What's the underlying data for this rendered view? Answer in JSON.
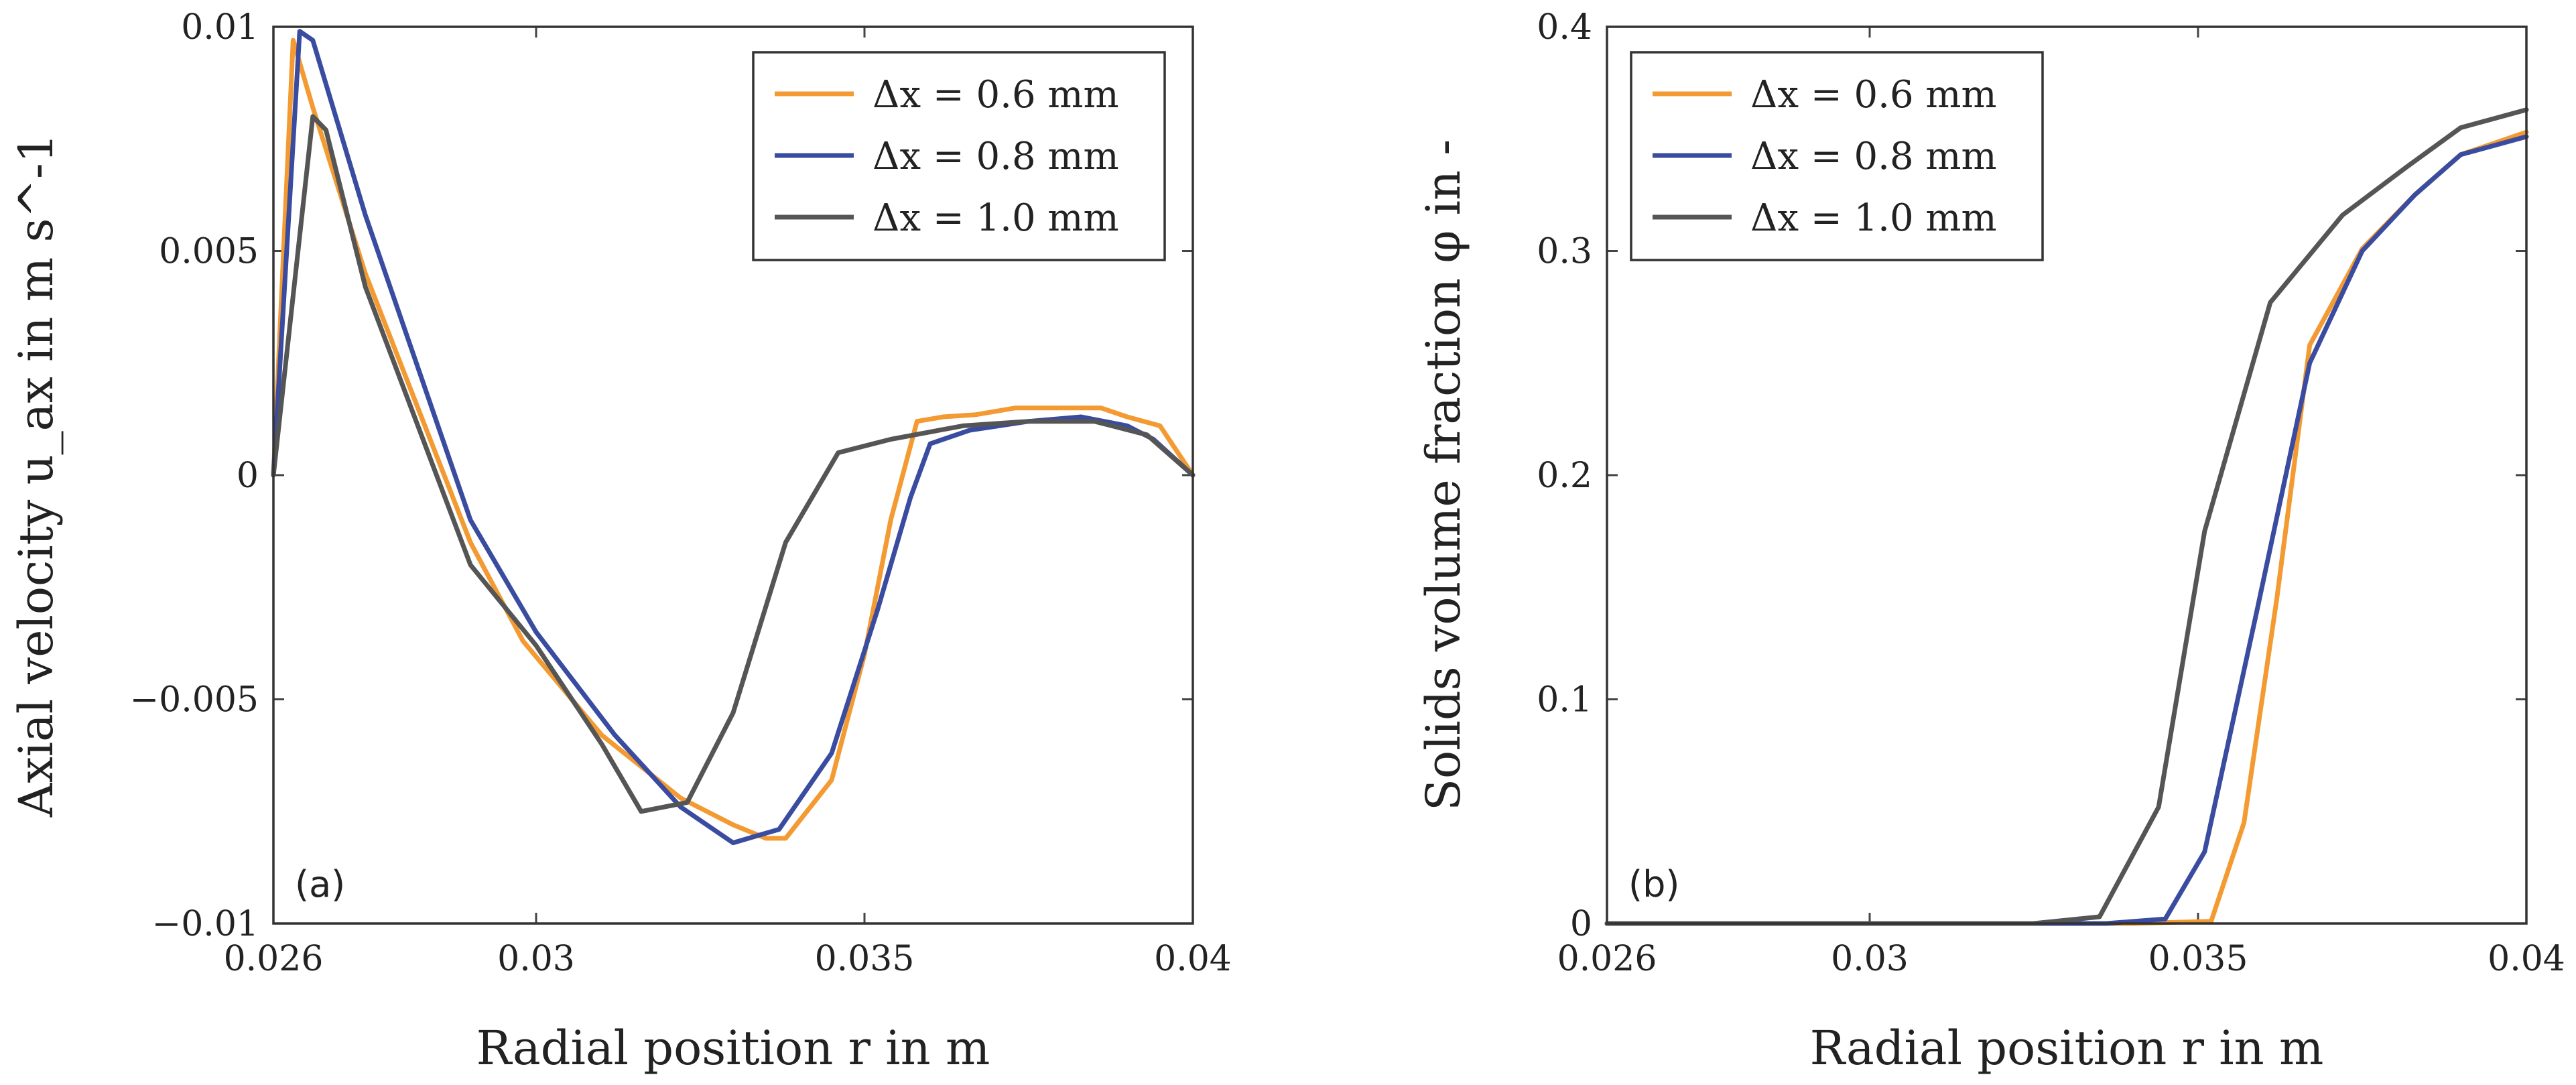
{
  "chart_data": [
    {
      "type": "line",
      "panel_label": "(a)",
      "xlabel": "Radial position r in m",
      "ylabel": "Axial velocity u_ax in m s^-1",
      "xlim": [
        0.026,
        0.04
      ],
      "ylim": [
        -0.01,
        0.01
      ],
      "xticks": [
        0.026,
        0.03,
        0.035,
        0.04
      ],
      "xtick_labels": [
        "0.026",
        "0.03",
        "0.035",
        "0.04"
      ],
      "yticks": [
        -0.01,
        -0.005,
        0,
        0.005,
        0.01
      ],
      "ytick_labels": [
        "−0.01",
        "−0.005",
        "0",
        "0.005",
        "0.01"
      ],
      "grid": false,
      "legend_position": "top-right",
      "series": [
        {
          "name": "Δx = 0.6 mm",
          "color": "#f39a32",
          "points": [
            [
              0.026,
              0.0
            ],
            [
              0.0263,
              0.0097
            ],
            [
              0.0266,
              0.0082
            ],
            [
              0.0274,
              0.0045
            ],
            [
              0.029,
              -0.0015
            ],
            [
              0.0298,
              -0.0037
            ],
            [
              0.031,
              -0.0058
            ],
            [
              0.0322,
              -0.0072
            ],
            [
              0.033,
              -0.0078
            ],
            [
              0.0335,
              -0.0081
            ],
            [
              0.0338,
              -0.0081
            ],
            [
              0.0345,
              -0.0068
            ],
            [
              0.035,
              -0.004
            ],
            [
              0.0354,
              -0.001
            ],
            [
              0.0358,
              0.0012
            ],
            [
              0.0362,
              0.0013
            ],
            [
              0.0367,
              0.00135
            ],
            [
              0.0373,
              0.0015
            ],
            [
              0.038,
              0.0015
            ],
            [
              0.0386,
              0.0015
            ],
            [
              0.039,
              0.0013
            ],
            [
              0.0395,
              0.0011
            ],
            [
              0.04,
              0.0
            ]
          ]
        },
        {
          "name": "Δx = 0.8 mm",
          "color": "#3a4ca0",
          "points": [
            [
              0.026,
              0.0
            ],
            [
              0.0264,
              0.0099
            ],
            [
              0.0266,
              0.0097
            ],
            [
              0.0274,
              0.0058
            ],
            [
              0.029,
              -0.001
            ],
            [
              0.03,
              -0.0035
            ],
            [
              0.0312,
              -0.0058
            ],
            [
              0.0322,
              -0.0074
            ],
            [
              0.033,
              -0.0082
            ],
            [
              0.0337,
              -0.0079
            ],
            [
              0.0345,
              -0.0062
            ],
            [
              0.0352,
              -0.003
            ],
            [
              0.0357,
              -0.0005
            ],
            [
              0.036,
              0.0007
            ],
            [
              0.0366,
              0.001
            ],
            [
              0.0375,
              0.0012
            ],
            [
              0.0383,
              0.0013
            ],
            [
              0.039,
              0.0011
            ],
            [
              0.0394,
              0.0008
            ],
            [
              0.04,
              0.0
            ]
          ]
        },
        {
          "name": "Δx = 1.0 mm",
          "color": "#555555",
          "points": [
            [
              0.026,
              0.0
            ],
            [
              0.0266,
              0.008
            ],
            [
              0.0268,
              0.0077
            ],
            [
              0.0274,
              0.0042
            ],
            [
              0.029,
              -0.002
            ],
            [
              0.03,
              -0.0038
            ],
            [
              0.031,
              -0.006
            ],
            [
              0.0316,
              -0.0075
            ],
            [
              0.0323,
              -0.0073
            ],
            [
              0.033,
              -0.0053
            ],
            [
              0.0338,
              -0.0015
            ],
            [
              0.0346,
              0.0005
            ],
            [
              0.0354,
              0.0008
            ],
            [
              0.0365,
              0.0011
            ],
            [
              0.0375,
              0.0012
            ],
            [
              0.0385,
              0.0012
            ],
            [
              0.0393,
              0.0009
            ],
            [
              0.04,
              0.0
            ]
          ]
        }
      ]
    },
    {
      "type": "line",
      "panel_label": "(b)",
      "xlabel": "Radial position r in m",
      "ylabel": "Solids volume fraction φ in -",
      "xlim": [
        0.026,
        0.04
      ],
      "ylim": [
        0,
        0.4
      ],
      "xticks": [
        0.026,
        0.03,
        0.035,
        0.04
      ],
      "xtick_labels": [
        "0.026",
        "0.03",
        "0.035",
        "0.04"
      ],
      "yticks": [
        0,
        0.1,
        0.2,
        0.3,
        0.4
      ],
      "ytick_labels": [
        "0",
        "0.1",
        "0.2",
        "0.3",
        "0.4"
      ],
      "grid": false,
      "legend_position": "top-left",
      "series": [
        {
          "name": "Δx = 0.6 mm",
          "color": "#f39a32",
          "points": [
            [
              0.026,
              0.0
            ],
            [
              0.034,
              0.0
            ],
            [
              0.0352,
              0.001
            ],
            [
              0.0357,
              0.045
            ],
            [
              0.0362,
              0.145
            ],
            [
              0.0367,
              0.258
            ],
            [
              0.0375,
              0.301
            ],
            [
              0.0383,
              0.325
            ],
            [
              0.039,
              0.343
            ],
            [
              0.04,
              0.353
            ]
          ]
        },
        {
          "name": "Δx = 0.8 mm",
          "color": "#3a4ca0",
          "points": [
            [
              0.026,
              0.0
            ],
            [
              0.0336,
              0.0
            ],
            [
              0.0345,
              0.002
            ],
            [
              0.0351,
              0.032
            ],
            [
              0.0359,
              0.14
            ],
            [
              0.0367,
              0.25
            ],
            [
              0.0375,
              0.3
            ],
            [
              0.0383,
              0.325
            ],
            [
              0.039,
              0.343
            ],
            [
              0.04,
              0.351
            ]
          ]
        },
        {
          "name": "Δx = 1.0 mm",
          "color": "#555555",
          "points": [
            [
              0.026,
              0.0
            ],
            [
              0.0325,
              0.0
            ],
            [
              0.0335,
              0.003
            ],
            [
              0.0344,
              0.052
            ],
            [
              0.0351,
              0.175
            ],
            [
              0.0361,
              0.277
            ],
            [
              0.0372,
              0.316
            ],
            [
              0.0382,
              0.338
            ],
            [
              0.039,
              0.355
            ],
            [
              0.04,
              0.363
            ]
          ]
        }
      ]
    }
  ]
}
